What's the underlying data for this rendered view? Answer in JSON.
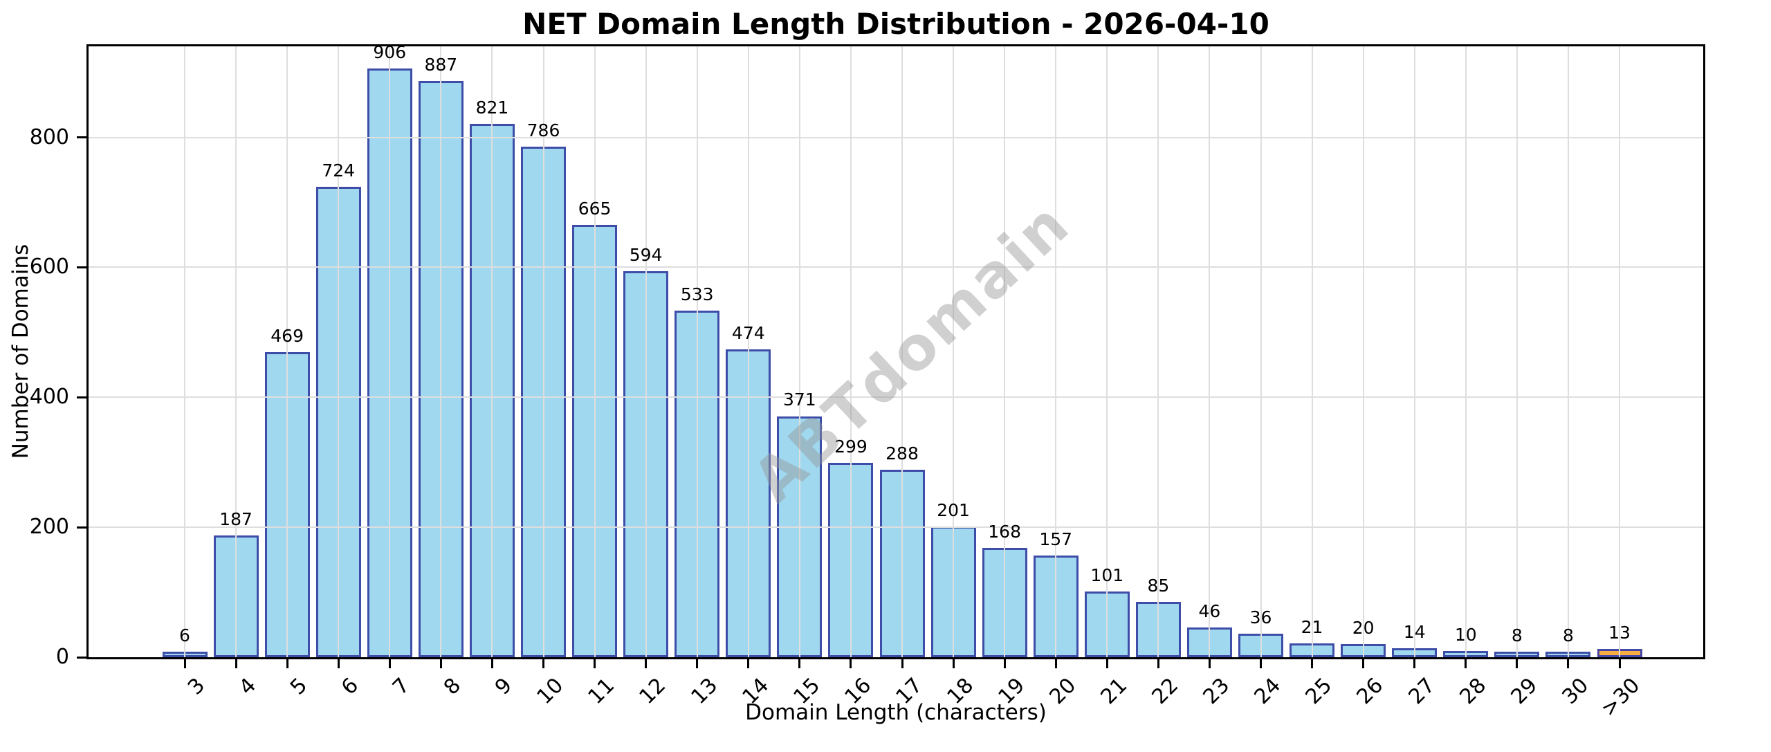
{
  "page": {
    "background_color": "#FFFFFF"
  },
  "chart_data": {
    "type": "bar",
    "title": "NET Domain Length Distribution - 2026-04-10",
    "xlabel": "Domain Length (characters)",
    "ylabel": "Number of Domains",
    "categories": [
      "3",
      "4",
      "5",
      "6",
      "7",
      "8",
      "9",
      "10",
      "11",
      "12",
      "13",
      "14",
      "15",
      "16",
      "17",
      "18",
      "19",
      "20",
      "21",
      "22",
      "23",
      "24",
      "25",
      "26",
      "27",
      "28",
      "29",
      "30",
      ">30"
    ],
    "values": [
      6,
      187,
      469,
      724,
      906,
      887,
      821,
      786,
      665,
      594,
      533,
      474,
      371,
      299,
      288,
      201,
      168,
      157,
      101,
      85,
      46,
      36,
      21,
      20,
      14,
      10,
      8,
      8,
      13
    ],
    "ylim": [
      0,
      940
    ],
    "yticks": [
      0,
      200,
      400,
      600,
      800
    ],
    "grid": true,
    "legend": "none",
    "bar_color": "#9FD8EF",
    "bar_edge_color": "#3D4DA8",
    "highlight_category": ">30",
    "highlight_color": "#F8AC42",
    "highlight_edge_color": "#4747A8",
    "grid_color": "#DEDEDE",
    "watermark": "ABTdomain",
    "x_tick_rotation_deg": 45
  }
}
